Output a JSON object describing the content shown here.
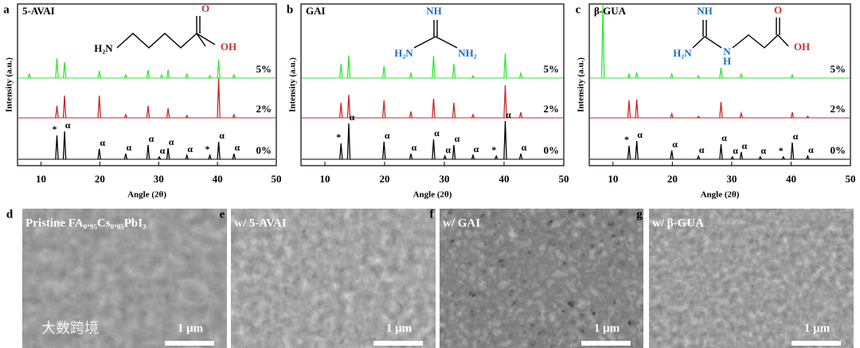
{
  "chart_data": [
    {
      "type": "line",
      "panel": "a",
      "title": "5-AVAI",
      "x_label": "Angle (2θ)",
      "y_label": "Intensity (a.u.)",
      "xlim": [
        6,
        50
      ],
      "xticks": [
        10,
        20,
        30,
        40,
        50
      ],
      "structure_labels": [
        "H₂N",
        "O",
        "OH"
      ],
      "series": [
        {
          "name": "0%",
          "color": "#000000",
          "x": [
            12.7,
            14.0,
            19.9,
            24.4,
            28.2,
            30.1,
            31.6,
            34.8,
            38.7,
            40.2,
            42.8
          ],
          "values": [
            60,
            70,
            26,
            14,
            36,
            6,
            28,
            10,
            10,
            44,
            14
          ]
        },
        {
          "name": "2%",
          "color": "#c62828",
          "x": [
            12.7,
            14.0,
            19.9,
            24.4,
            28.2,
            31.6,
            34.8,
            40.2,
            42.8
          ],
          "values": [
            30,
            56,
            56,
            8,
            30,
            24,
            6,
            100,
            8
          ]
        },
        {
          "name": "5%",
          "color": "#33e633",
          "x": [
            8.0,
            12.7,
            14.0,
            19.9,
            24.4,
            28.2,
            30.5,
            31.6,
            34.8,
            38.7,
            40.2,
            42.8
          ],
          "values": [
            10,
            50,
            40,
            18,
            8,
            20,
            8,
            20,
            10,
            6,
            46,
            8
          ]
        }
      ],
      "annotations": [
        {
          "x": 12.7,
          "label": "*"
        },
        {
          "x": 14.0,
          "label": "α"
        },
        {
          "x": 19.9,
          "label": "α"
        },
        {
          "x": 24.4,
          "label": "α"
        },
        {
          "x": 28.2,
          "label": "α"
        },
        {
          "x": 30.1,
          "label": "α"
        },
        {
          "x": 31.6,
          "label": "α"
        },
        {
          "x": 34.8,
          "label": "α"
        },
        {
          "x": 38.7,
          "label": "*"
        },
        {
          "x": 40.2,
          "label": "α"
        },
        {
          "x": 42.8,
          "label": "α"
        }
      ]
    },
    {
      "type": "line",
      "panel": "b",
      "title": "GAI",
      "x_label": "Angle (2θ)",
      "y_label": "Intensity (a.u.)",
      "xlim": [
        6,
        50
      ],
      "xticks": [
        10,
        20,
        30,
        40,
        50
      ],
      "structure_labels": [
        "NH",
        "H₂N",
        "NH₂"
      ],
      "series": [
        {
          "name": "0%",
          "color": "#000000",
          "x": [
            12.7,
            14.0,
            19.9,
            24.4,
            28.2,
            30.1,
            31.6,
            34.8,
            38.7,
            40.2,
            42.8
          ],
          "values": [
            40,
            90,
            44,
            14,
            50,
            8,
            36,
            10,
            8,
            96,
            14
          ]
        },
        {
          "name": "2%",
          "color": "#c62828",
          "x": [
            12.7,
            14.0,
            19.9,
            24.4,
            28.2,
            31.6,
            34.8,
            40.2,
            42.8
          ],
          "values": [
            38,
            58,
            44,
            16,
            48,
            38,
            8,
            82,
            14
          ]
        },
        {
          "name": "5%",
          "color": "#33e633",
          "x": [
            12.7,
            14.0,
            19.9,
            24.4,
            28.2,
            31.6,
            34.8,
            40.2,
            42.8
          ],
          "values": [
            36,
            56,
            30,
            12,
            56,
            36,
            6,
            62,
            12
          ]
        }
      ],
      "annotations": [
        {
          "x": 12.7,
          "label": "*"
        },
        {
          "x": 14.0,
          "label": "α"
        },
        {
          "x": 19.9,
          "label": "α"
        },
        {
          "x": 24.4,
          "label": "α"
        },
        {
          "x": 28.2,
          "label": "α"
        },
        {
          "x": 30.1,
          "label": "α"
        },
        {
          "x": 31.6,
          "label": "α"
        },
        {
          "x": 34.8,
          "label": "α"
        },
        {
          "x": 38.7,
          "label": "*"
        },
        {
          "x": 40.2,
          "label": "α"
        },
        {
          "x": 42.8,
          "label": "α"
        }
      ]
    },
    {
      "type": "line",
      "panel": "c",
      "title": "β-GUA",
      "x_label": "Angle (2θ)",
      "y_label": "Intensity (a.u.)",
      "xlim": [
        6,
        50
      ],
      "xticks": [
        10,
        20,
        30,
        40,
        50
      ],
      "structure_labels": [
        "NH",
        "H₂N",
        "N",
        "H",
        "O",
        "OH"
      ],
      "series": [
        {
          "name": "0%",
          "color": "#000000",
          "x": [
            12.7,
            14.0,
            19.9,
            24.4,
            28.2,
            30.1,
            31.6,
            34.8,
            38.7,
            40.2,
            42.8
          ],
          "values": [
            34,
            46,
            22,
            8,
            38,
            6,
            18,
            6,
            6,
            42,
            8
          ]
        },
        {
          "name": "2%",
          "color": "#c62828",
          "x": [
            12.7,
            14.0,
            19.9,
            24.4,
            28.2,
            31.6,
            40.2,
            42.8
          ],
          "values": [
            44,
            46,
            10,
            4,
            40,
            12,
            14,
            4
          ]
        },
        {
          "name": "5%",
          "color": "#33e633",
          "x": [
            8.3,
            12.7,
            14.0,
            19.9,
            24.4,
            28.2,
            31.6,
            40.2
          ],
          "values": [
            186,
            10,
            14,
            10,
            6,
            26,
            10,
            8
          ]
        }
      ],
      "annotations": [
        {
          "x": 12.7,
          "label": "*"
        },
        {
          "x": 14.0,
          "label": "α"
        },
        {
          "x": 19.9,
          "label": "α"
        },
        {
          "x": 24.4,
          "label": "α"
        },
        {
          "x": 28.2,
          "label": "α"
        },
        {
          "x": 30.1,
          "label": "α"
        },
        {
          "x": 31.6,
          "label": "α"
        },
        {
          "x": 34.8,
          "label": "α"
        },
        {
          "x": 38.7,
          "label": "*"
        },
        {
          "x": 40.2,
          "label": "α"
        },
        {
          "x": 42.8,
          "label": "α"
        }
      ]
    }
  ],
  "images": [
    {
      "panel": "d",
      "caption": "Pristine FA₀.₉₅Cs₀.₀₅PbI₃",
      "scale_bar": "1 μm"
    },
    {
      "panel": "e",
      "caption": "w/ 5-AVAI",
      "scale_bar": "1 μm"
    },
    {
      "panel": "f",
      "caption": "w/ GAI",
      "scale_bar": "1 μm"
    },
    {
      "panel": "g",
      "caption": "w/ β-GUA",
      "scale_bar": "1 μm"
    }
  ],
  "watermark": "大数跨境"
}
